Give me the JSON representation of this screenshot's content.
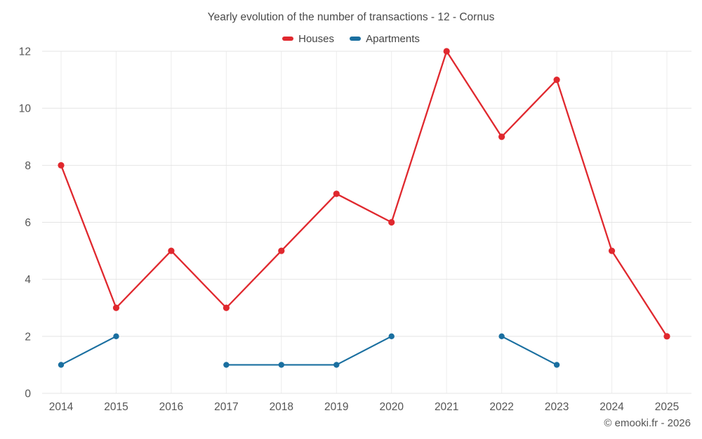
{
  "chart_data": {
    "type": "line",
    "title": "Yearly evolution of the number of transactions - 12 - Cornus",
    "footer": "© emooki.fr - 2026",
    "categories": [
      "2014",
      "2015",
      "2016",
      "2017",
      "2018",
      "2019",
      "2020",
      "2021",
      "2022",
      "2023",
      "2024",
      "2025"
    ],
    "series": [
      {
        "name": "Houses",
        "color": "#e0282e",
        "marker_radius": 4.6,
        "line_width": 2.3,
        "values": [
          8,
          3,
          5,
          3,
          5,
          7,
          6,
          12,
          9,
          11,
          5,
          2
        ]
      },
      {
        "name": "Apartments",
        "color": "#1a6fa0",
        "marker_radius": 4.2,
        "line_width": 2.1,
        "values": [
          1,
          2,
          null,
          1,
          1,
          1,
          2,
          null,
          2,
          1,
          null,
          null
        ]
      }
    ],
    "xlabel": "",
    "ylabel": "",
    "ylim": [
      0,
      12
    ],
    "ytick_step": 2,
    "grid": true,
    "legend_position": "top",
    "grid_color_horizontal": "#e4e4e4",
    "grid_color_vertical": "#ededed",
    "axis_text_color": "#555555"
  }
}
